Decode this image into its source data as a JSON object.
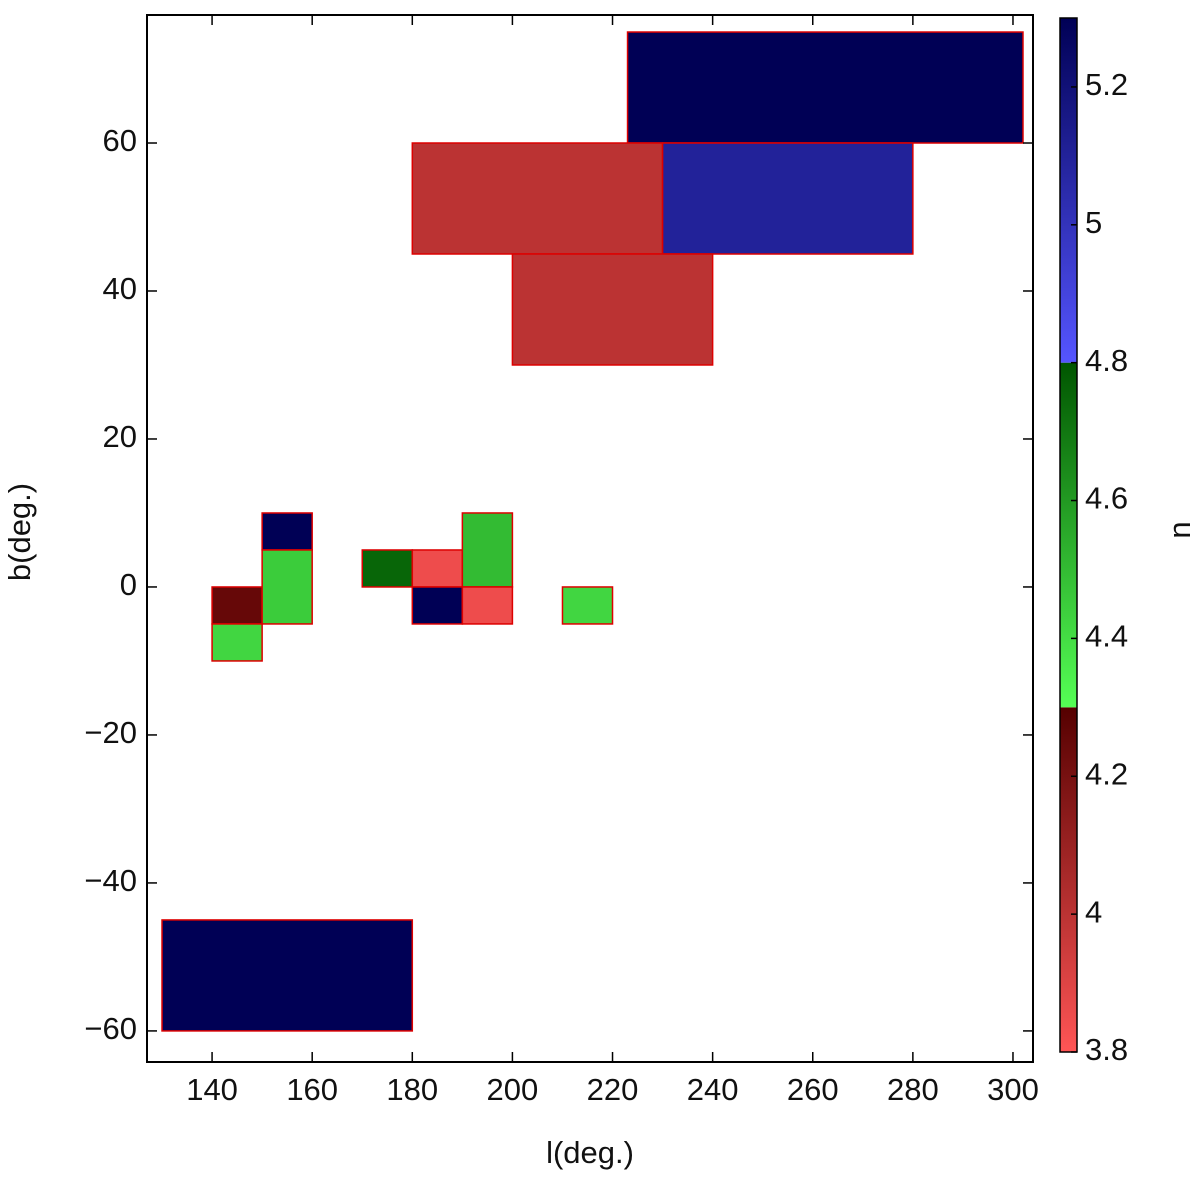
{
  "chart_data": {
    "type": "heatmap",
    "x_label": "l(deg.)",
    "y_label": "b(deg.)",
    "colorbar_label": "n",
    "xlim": [
      127,
      304
    ],
    "ylim": [
      -64.2,
      77.3
    ],
    "xticks": [
      140,
      160,
      180,
      200,
      220,
      240,
      260,
      280,
      300
    ],
    "yticks": [
      {
        "value": -60,
        "label": "−60"
      },
      {
        "value": -40,
        "label": "−40"
      },
      {
        "value": -20,
        "label": "−20"
      },
      0,
      20,
      40,
      60
    ],
    "clim": [
      3.8,
      5.3
    ],
    "cticks": [
      3.8,
      4.0,
      4.2,
      4.4,
      4.6,
      4.8,
      5.0,
      5.2
    ],
    "colormap": [
      {
        "range": [
          3.8,
          4.3
        ],
        "colors": [
          "#ff5555",
          "#550000"
        ]
      },
      {
        "range": [
          4.3,
          4.8
        ],
        "colors": [
          "#55ff55",
          "#005500"
        ]
      },
      {
        "range": [
          4.8,
          5.3
        ],
        "colors": [
          "#5555ff",
          "#000055"
        ]
      }
    ],
    "edge_color": "#dd0000",
    "cells": [
      {
        "l": [
          223,
          302
        ],
        "b": [
          60,
          75
        ],
        "n": 5.3
      },
      {
        "l": [
          180,
          230
        ],
        "b": [
          45,
          60
        ],
        "n": 4.0
      },
      {
        "l": [
          230,
          280
        ],
        "b": [
          45,
          60
        ],
        "n": 5.1
      },
      {
        "l": [
          200,
          240
        ],
        "b": [
          30,
          45
        ],
        "n": 4.0
      },
      {
        "l": [
          130,
          180
        ],
        "b": [
          -60,
          -45
        ],
        "n": 5.3
      },
      {
        "l": [
          140,
          150
        ],
        "b": [
          -5,
          0
        ],
        "n": 4.25
      },
      {
        "l": [
          140,
          150
        ],
        "b": [
          -10,
          -5
        ],
        "n": 4.42
      },
      {
        "l": [
          150,
          160
        ],
        "b": [
          5,
          10
        ],
        "n": 5.3
      },
      {
        "l": [
          150,
          160
        ],
        "b": [
          -5,
          5
        ],
        "n": 4.45
      },
      {
        "l": [
          170,
          180
        ],
        "b": [
          0,
          5
        ],
        "n": 4.75
      },
      {
        "l": [
          180,
          190
        ],
        "b": [
          0,
          5
        ],
        "n": 3.85
      },
      {
        "l": [
          180,
          190
        ],
        "b": [
          -5,
          0
        ],
        "n": 5.3
      },
      {
        "l": [
          190,
          200
        ],
        "b": [
          0,
          10
        ],
        "n": 4.5
      },
      {
        "l": [
          190,
          200
        ],
        "b": [
          -5,
          0
        ],
        "n": 3.85
      },
      {
        "l": [
          210,
          220
        ],
        "b": [
          -5,
          0
        ],
        "n": 4.42
      }
    ]
  }
}
